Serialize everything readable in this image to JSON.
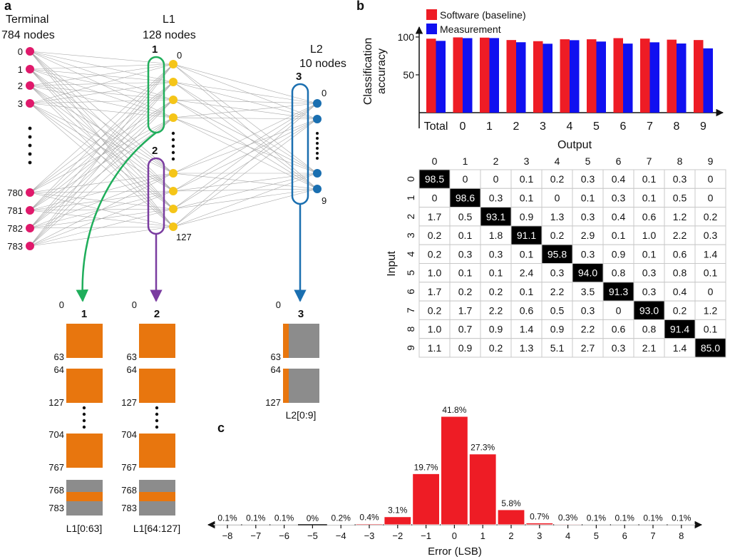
{
  "panel_a": {
    "panel_label": "a",
    "terminal": {
      "title": "Terminal",
      "nodes_label": "784 nodes",
      "indices": [
        "0",
        "1",
        "2",
        "3",
        "780",
        "781",
        "782",
        "783"
      ]
    },
    "l1": {
      "title": "L1",
      "nodes_label": "128 nodes",
      "group1_label": "1",
      "group2_label": "2",
      "first_index": "0",
      "last_index": "127"
    },
    "l2": {
      "title": "L2",
      "nodes_label": "10 nodes",
      "group_label": "3",
      "first_index": "0",
      "last_index": "9"
    },
    "arrays": [
      {
        "label": "1",
        "caption": "L1[0:63]",
        "ticks": [
          "0",
          "63",
          "64",
          "127",
          "704",
          "767",
          "768",
          "783"
        ]
      },
      {
        "label": "2",
        "caption": "L1[64:127]",
        "ticks": [
          "0",
          "63",
          "64",
          "127",
          "704",
          "767",
          "768",
          "783"
        ]
      },
      {
        "label": "3",
        "caption": "L2[0:9]",
        "ticks": [
          "0",
          "63",
          "64",
          "127"
        ]
      }
    ],
    "colors": {
      "terminal": "#e0196b",
      "l1": "#f5c518",
      "l2": "#1a6fb0",
      "group1": "#1fae5b",
      "group2": "#7a3ca0",
      "group3": "#1a6fb0",
      "weight": "#e8760e",
      "unused": "#8c8c8c"
    }
  },
  "chart_data": [
    {
      "type": "bar",
      "panel_label": "b",
      "categories": [
        "Total",
        "0",
        "1",
        "2",
        "3",
        "4",
        "5",
        "6",
        "7",
        "8",
        "9"
      ],
      "series": [
        {
          "name": "Software (baseline)",
          "color": "#ee1c25",
          "values": [
            97.8,
            99.5,
            99.2,
            96.0,
            94.5,
            97.0,
            97.0,
            98.5,
            97.9,
            96.5,
            96.0
          ]
        },
        {
          "name": "Measurement",
          "color": "#1010f0",
          "values": [
            94.9,
            98.5,
            98.6,
            93.1,
            91.1,
            95.8,
            94.0,
            91.3,
            93.0,
            91.4,
            85.0
          ]
        }
      ],
      "ylabel": "Classification accuracy",
      "ylim": [
        0,
        115
      ],
      "yticks": [
        "50",
        "100"
      ]
    },
    {
      "type": "table",
      "title": "Output",
      "row_label": "Input",
      "col_headers": [
        "0",
        "1",
        "2",
        "3",
        "4",
        "5",
        "6",
        "7",
        "8",
        "9"
      ],
      "row_headers": [
        "0",
        "1",
        "2",
        "3",
        "4",
        "5",
        "6",
        "7",
        "8",
        "9"
      ],
      "rows": [
        [
          "98.5",
          "0",
          "0",
          "0.1",
          "0.2",
          "0.3",
          "0.4",
          "0.1",
          "0.3",
          "0"
        ],
        [
          "0",
          "98.6",
          "0.3",
          "0.1",
          "0",
          "0.1",
          "0.3",
          "0.1",
          "0.5",
          "0"
        ],
        [
          "1.7",
          "0.5",
          "93.1",
          "0.9",
          "1.3",
          "0.3",
          "0.4",
          "0.6",
          "1.2",
          "0.2"
        ],
        [
          "0.2",
          "0.1",
          "1.8",
          "91.1",
          "0.2",
          "2.9",
          "0.1",
          "1.0",
          "2.2",
          "0.3"
        ],
        [
          "0.2",
          "0.3",
          "0.3",
          "0.1",
          "95.8",
          "0.3",
          "0.9",
          "0.1",
          "0.6",
          "1.4"
        ],
        [
          "1.0",
          "0.1",
          "0.1",
          "2.4",
          "0.3",
          "94.0",
          "0.8",
          "0.3",
          "0.8",
          "0.1"
        ],
        [
          "1.7",
          "0.2",
          "0.2",
          "0.1",
          "2.2",
          "3.5",
          "91.3",
          "0.3",
          "0.4",
          "0"
        ],
        [
          "0.2",
          "1.7",
          "2.2",
          "0.6",
          "0.5",
          "0.3",
          "0",
          "93.0",
          "0.2",
          "1.2"
        ],
        [
          "1.0",
          "0.7",
          "0.9",
          "1.4",
          "0.9",
          "2.2",
          "0.6",
          "0.8",
          "91.4",
          "0.1"
        ],
        [
          "1.1",
          "0.9",
          "0.2",
          "1.3",
          "5.1",
          "2.7",
          "0.3",
          "2.1",
          "1.4",
          "85.0"
        ]
      ]
    },
    {
      "type": "bar",
      "panel_label": "c",
      "categories": [
        "−8",
        "−7",
        "−6",
        "−5",
        "−4",
        "−3",
        "−2",
        "−1",
        "0",
        "1",
        "2",
        "3",
        "4",
        "5",
        "6",
        "7",
        "8"
      ],
      "values": [
        0.1,
        0.1,
        0.1,
        0,
        0.2,
        0.4,
        3.1,
        19.7,
        41.8,
        27.3,
        5.8,
        0.7,
        0.3,
        0.1,
        0.1,
        0.1,
        0.1
      ],
      "labels": [
        "0.1%",
        "0.1%",
        "0.1%",
        "0%",
        "0.2%",
        "0.4%",
        "3.1%",
        "19.7%",
        "41.8%",
        "27.3%",
        "5.8%",
        "0.7%",
        "0.3%",
        "0.1%",
        "0.1%",
        "0.1%",
        "0.1%"
      ],
      "xlabel": "Error (LSB)",
      "color": "#ee1c25"
    }
  ]
}
